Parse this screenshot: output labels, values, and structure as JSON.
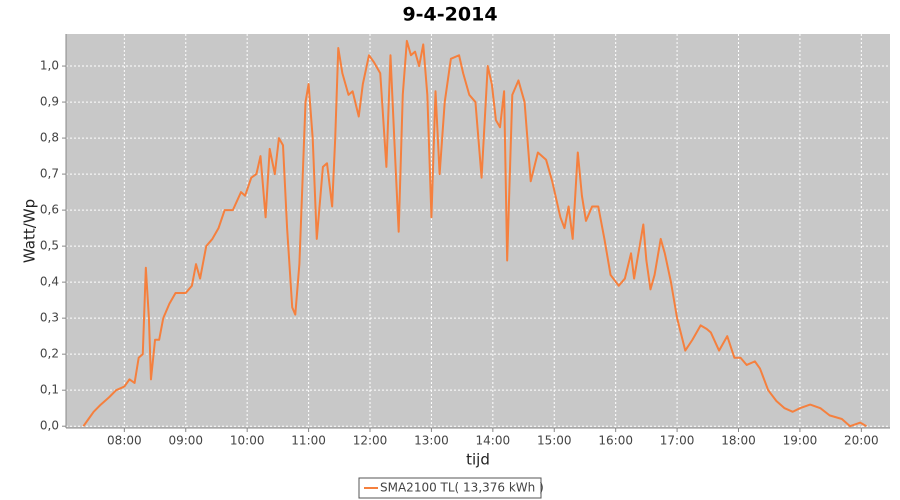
{
  "chart_data": {
    "type": "line",
    "title": "9-4-2014",
    "x_label": "tijd",
    "y_label": "Watt/Wp",
    "x": [
      "07:20",
      "07:25",
      "07:30",
      "07:37",
      "07:45",
      "07:52",
      "08:00",
      "08:05",
      "08:10",
      "08:14",
      "08:18",
      "08:21",
      "08:24",
      "08:26",
      "08:30",
      "08:34",
      "08:38",
      "08:44",
      "08:50",
      "08:56",
      "09:00",
      "09:06",
      "09:10",
      "09:14",
      "09:20",
      "09:26",
      "09:32",
      "09:38",
      "09:46",
      "09:54",
      "09:58",
      "10:04",
      "10:09",
      "10:13",
      "10:18",
      "10:22",
      "10:27",
      "10:31",
      "10:35",
      "10:39",
      "10:44",
      "10:47",
      "10:51",
      "10:57",
      "11:00",
      "11:04",
      "11:08",
      "11:14",
      "11:18",
      "11:23",
      "11:26",
      "11:29",
      "11:33",
      "11:39",
      "11:43",
      "11:49",
      "11:53",
      "11:59",
      "12:04",
      "12:10",
      "12:16",
      "12:20",
      "12:24",
      "12:28",
      "12:32",
      "12:36",
      "12:40",
      "12:44",
      "12:48",
      "12:52",
      "12:56",
      "13:00",
      "13:04",
      "13:08",
      "13:13",
      "13:19",
      "13:27",
      "13:31",
      "13:37",
      "13:43",
      "13:49",
      "13:55",
      "13:59",
      "14:03",
      "14:07",
      "14:11",
      "14:14",
      "14:19",
      "14:25",
      "14:31",
      "14:37",
      "14:44",
      "14:52",
      "14:58",
      "15:06",
      "15:10",
      "15:14",
      "15:18",
      "15:23",
      "15:27",
      "15:31",
      "15:37",
      "15:43",
      "15:49",
      "15:55",
      "16:03",
      "16:09",
      "16:15",
      "16:18",
      "16:27",
      "16:30",
      "16:34",
      "16:38",
      "16:44",
      "16:48",
      "16:54",
      "17:00",
      "17:08",
      "17:15",
      "17:23",
      "17:29",
      "17:33",
      "17:41",
      "17:49",
      "17:56",
      "18:02",
      "18:08",
      "18:16",
      "18:21",
      "18:29",
      "18:37",
      "18:45",
      "18:53",
      "19:00",
      "19:10",
      "19:20",
      "19:29",
      "19:41",
      "19:49",
      "19:59",
      "20:05"
    ],
    "series": [
      {
        "name": "SMA2100 TL( 13,376 kWh )",
        "color": "#f5803e",
        "values": [
          0.0,
          0.02,
          0.04,
          0.06,
          0.08,
          0.1,
          0.11,
          0.13,
          0.12,
          0.19,
          0.2,
          0.44,
          0.3,
          0.13,
          0.24,
          0.24,
          0.3,
          0.34,
          0.37,
          0.37,
          0.37,
          0.39,
          0.45,
          0.41,
          0.5,
          0.52,
          0.55,
          0.6,
          0.6,
          0.65,
          0.64,
          0.69,
          0.7,
          0.75,
          0.58,
          0.77,
          0.7,
          0.8,
          0.78,
          0.55,
          0.33,
          0.31,
          0.45,
          0.9,
          0.95,
          0.8,
          0.52,
          0.72,
          0.73,
          0.61,
          0.8,
          1.05,
          0.98,
          0.92,
          0.93,
          0.86,
          0.95,
          1.03,
          1.01,
          0.98,
          0.72,
          1.03,
          0.78,
          0.54,
          0.92,
          1.07,
          1.03,
          1.04,
          1.0,
          1.06,
          0.92,
          0.58,
          0.93,
          0.7,
          0.9,
          1.02,
          1.03,
          0.98,
          0.92,
          0.9,
          0.69,
          1.0,
          0.95,
          0.85,
          0.83,
          0.93,
          0.46,
          0.92,
          0.96,
          0.9,
          0.68,
          0.76,
          0.74,
          0.68,
          0.58,
          0.55,
          0.61,
          0.52,
          0.76,
          0.64,
          0.57,
          0.61,
          0.61,
          0.52,
          0.42,
          0.39,
          0.41,
          0.48,
          0.41,
          0.56,
          0.46,
          0.38,
          0.42,
          0.52,
          0.48,
          0.4,
          0.3,
          0.21,
          0.24,
          0.28,
          0.27,
          0.26,
          0.21,
          0.25,
          0.19,
          0.19,
          0.17,
          0.18,
          0.16,
          0.1,
          0.07,
          0.05,
          0.04,
          0.05,
          0.06,
          0.05,
          0.03,
          0.02,
          0.0,
          0.01,
          0.0
        ]
      }
    ],
    "xlim": [
      "07:03",
      "20:28"
    ],
    "xticks": [
      "08:00",
      "09:00",
      "10:00",
      "11:00",
      "12:00",
      "13:00",
      "14:00",
      "15:00",
      "16:00",
      "17:00",
      "18:00",
      "19:00",
      "20:00"
    ],
    "ylim": [
      -0.005,
      1.089
    ],
    "yticks": [
      {
        "value": 0,
        "label": "0,0"
      },
      {
        "value": 0.1,
        "label": "0,1"
      },
      {
        "value": 0.2,
        "label": "0,2"
      },
      {
        "value": 0.3,
        "label": "0,3"
      },
      {
        "value": 0.4,
        "label": "0,4"
      },
      {
        "value": 0.5,
        "label": "0,5"
      },
      {
        "value": 0.6,
        "label": "0,6"
      },
      {
        "value": 0.7,
        "label": "0,7"
      },
      {
        "value": 0.8,
        "label": "0,8"
      },
      {
        "value": 0.9,
        "label": "0,9"
      },
      {
        "value": 1.0,
        "label": "1,0"
      }
    ],
    "grid": true,
    "legend": "bottom"
  }
}
